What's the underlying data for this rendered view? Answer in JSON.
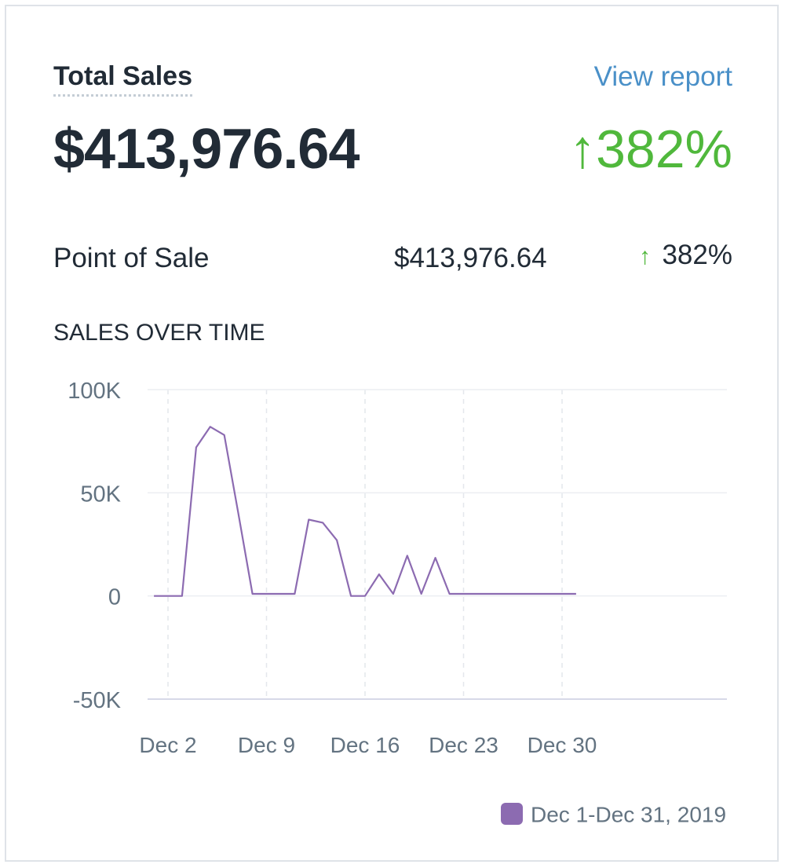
{
  "header": {
    "title": "Total Sales",
    "view_report_label": "View report",
    "total_value": "$413,976.64",
    "total_change": "↑382%"
  },
  "breakdown": {
    "label": "Point of Sale",
    "value": "$413,976.64",
    "arrow": "↑",
    "change": "382%"
  },
  "section_title": "SALES OVER TIME",
  "colors": {
    "positive": "#50b83c",
    "series": "#8c6bb1",
    "link": "#4a90c8"
  },
  "chart_data": {
    "type": "line",
    "title": "SALES OVER TIME",
    "xlabel": "",
    "ylabel": "",
    "ylim": [
      -50000,
      100000
    ],
    "y_ticks": [
      "100K",
      "50K",
      "0",
      "-50K"
    ],
    "y_tick_values": [
      100000,
      50000,
      0,
      -50000
    ],
    "x_ticks": [
      "Dec 2",
      "Dec 9",
      "Dec 16",
      "Dec 23",
      "Dec 30"
    ],
    "x_tick_days": [
      2,
      9,
      16,
      23,
      30
    ],
    "grid": true,
    "legend_position": "bottom-right",
    "series": [
      {
        "name": "Dec 1-Dec 31, 2019",
        "x": [
          "Dec 1",
          "Dec 2",
          "Dec 3",
          "Dec 4",
          "Dec 5",
          "Dec 6",
          "Dec 7",
          "Dec 8",
          "Dec 9",
          "Dec 10",
          "Dec 11",
          "Dec 12",
          "Dec 13",
          "Dec 14",
          "Dec 15",
          "Dec 16",
          "Dec 17",
          "Dec 18",
          "Dec 19",
          "Dec 20",
          "Dec 21",
          "Dec 22",
          "Dec 23",
          "Dec 24",
          "Dec 25",
          "Dec 26",
          "Dec 27",
          "Dec 28",
          "Dec 29",
          "Dec 30",
          "Dec 31"
        ],
        "values": [
          0,
          0,
          0,
          72000,
          82000,
          78000,
          40000,
          1000,
          1000,
          1000,
          1000,
          37000,
          35500,
          27000,
          0,
          0,
          10500,
          1000,
          19500,
          1000,
          18500,
          1000,
          1000,
          1000,
          1000,
          1000,
          1000,
          1000,
          1000,
          1000,
          1000
        ]
      }
    ]
  }
}
